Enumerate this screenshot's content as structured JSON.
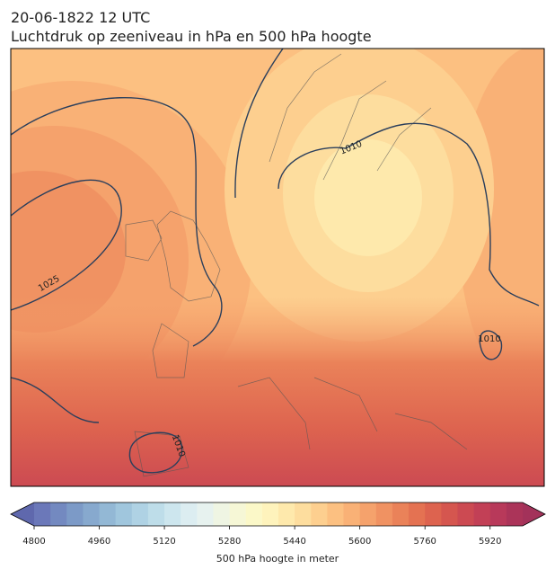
{
  "header": {
    "title": "20-06-1822 12 UTC",
    "subtitle": "Luchtdruk op zeeniveau in hPa en 500 hPa hoogte"
  },
  "map": {
    "contour_labels": [
      1010,
      1025,
      1010,
      1010
    ]
  },
  "colorbar": {
    "label": "500 hPa hoogte in meter",
    "lim": [
      4800,
      6000
    ],
    "ticks": [
      4800,
      4960,
      5120,
      5280,
      5440,
      5600,
      5760,
      5920
    ],
    "colors": [
      "#6b78b9",
      "#7389c0",
      "#7c9ac7",
      "#87a9ce",
      "#93b8d5",
      "#a0c6dd",
      "#afd2e4",
      "#bedde9",
      "#cde6ee",
      "#dcedf1",
      "#e7f2ef",
      "#eff5e3",
      "#f6f7d6",
      "#fbf8c8",
      "#fef3bc",
      "#fee9ac",
      "#fddd9e",
      "#fdcf8f",
      "#fcc081",
      "#f9b176",
      "#f5a26c",
      "#f09262",
      "#ea8259",
      "#e47252",
      "#dd634f",
      "#d5564f",
      "#cc4a52",
      "#c24056",
      "#b8395a",
      "#ab3459"
    ],
    "under": "#5f68ad",
    "over": "#a3325a"
  }
}
